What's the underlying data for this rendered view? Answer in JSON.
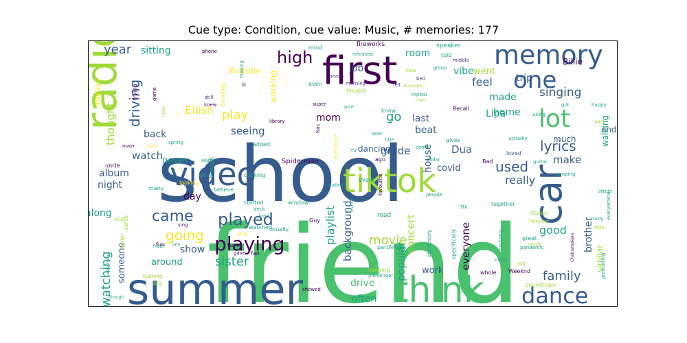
{
  "title": "Cue type: Condition, cue value: Music, # memories: 177",
  "palette": {
    "yellow": "#fde725",
    "lime": "#a0da39",
    "green": "#4ac16d",
    "teal": "#1fa187",
    "cyan": "#277f8e",
    "blue": "#365c8d",
    "indigo": "#46327e",
    "purple": "#440154"
  },
  "words": [
    {
      "text": "friend",
      "color": "green"
    },
    {
      "text": "school",
      "color": "blue"
    },
    {
      "text": "summer",
      "color": "blue"
    },
    {
      "text": "first",
      "color": "purple"
    },
    {
      "text": "radio",
      "color": "lime"
    },
    {
      "text": "think",
      "color": "green"
    },
    {
      "text": "tiktok",
      "color": "lime"
    },
    {
      "text": "video",
      "color": "blue"
    },
    {
      "text": "car",
      "color": "blue"
    },
    {
      "text": "memory",
      "color": "blue"
    },
    {
      "text": "one",
      "color": "blue"
    },
    {
      "text": "lot",
      "color": "green"
    },
    {
      "text": "dance",
      "color": "blue"
    },
    {
      "text": "playing",
      "color": "purple"
    },
    {
      "text": "played",
      "color": "blue"
    },
    {
      "text": "came",
      "color": "blue"
    },
    {
      "text": "going",
      "color": "yellow"
    },
    {
      "text": "high",
      "color": "purple"
    },
    {
      "text": "year",
      "color": "blue"
    },
    {
      "text": "play",
      "color": "yellow"
    },
    {
      "text": "driving",
      "color": "blue"
    },
    {
      "text": "used",
      "color": "blue"
    },
    {
      "text": "lyrics",
      "color": "blue"
    },
    {
      "text": "singing",
      "color": "blue"
    },
    {
      "text": "family",
      "color": "blue"
    },
    {
      "text": "sister",
      "color": "teal"
    },
    {
      "text": "watching",
      "color": "teal"
    },
    {
      "text": "movie",
      "color": "lime"
    },
    {
      "text": "everyone",
      "color": "purple"
    },
    {
      "text": "background",
      "color": "blue"
    },
    {
      "text": "playlist",
      "color": "teal"
    },
    {
      "text": "concert",
      "color": "lime"
    },
    {
      "text": "popular",
      "color": "teal"
    },
    {
      "text": "brother",
      "color": "blue"
    },
    {
      "text": "really",
      "color": "blue"
    },
    {
      "text": "good",
      "color": "teal"
    },
    {
      "text": "room",
      "color": "teal"
    },
    {
      "text": "vibe",
      "color": "teal"
    },
    {
      "text": "feel",
      "color": "blue"
    },
    {
      "text": "made",
      "color": "teal"
    },
    {
      "text": "went",
      "color": "lime"
    },
    {
      "text": "sitting",
      "color": "teal"
    },
    {
      "text": "thought",
      "color": "lime"
    },
    {
      "text": "watch",
      "color": "blue"
    },
    {
      "text": "Youtube",
      "color": "yellow"
    },
    {
      "text": "Eilish",
      "color": "yellow"
    },
    {
      "text": "Billie",
      "color": "purple"
    },
    {
      "text": "seeing",
      "color": "blue"
    },
    {
      "text": "back",
      "color": "blue"
    },
    {
      "text": "album",
      "color": "blue"
    },
    {
      "text": "night",
      "color": "blue"
    },
    {
      "text": "day",
      "color": "purple"
    },
    {
      "text": "along",
      "color": "teal"
    },
    {
      "text": "show",
      "color": "blue"
    },
    {
      "text": "around",
      "color": "teal"
    },
    {
      "text": "drive",
      "color": "green"
    },
    {
      "text": "often",
      "color": "teal"
    },
    {
      "text": "work",
      "color": "blue"
    },
    {
      "text": "mom",
      "color": "purple"
    },
    {
      "text": "go",
      "color": "teal"
    },
    {
      "text": "last",
      "color": "blue"
    },
    {
      "text": "beat",
      "color": "blue"
    },
    {
      "text": "home",
      "color": "teal"
    },
    {
      "text": "trip",
      "color": "blue"
    },
    {
      "text": "Lipa",
      "color": "teal"
    },
    {
      "text": "Dua",
      "color": "blue"
    },
    {
      "text": "covid",
      "color": "blue"
    },
    {
      "text": "make",
      "color": "blue"
    },
    {
      "text": "much",
      "color": "blue"
    },
    {
      "text": "end",
      "color": "blue"
    },
    {
      "text": "walking",
      "color": "teal"
    },
    {
      "text": "similar",
      "color": "lime"
    },
    {
      "text": "house",
      "color": "blue"
    },
    {
      "text": "grade",
      "color": "blue"
    },
    {
      "text": "dancing",
      "color": "blue"
    },
    {
      "text": "job",
      "color": "blue"
    },
    {
      "text": "working",
      "color": "yellow"
    },
    {
      "text": "someone",
      "color": "blue"
    },
    {
      "text": "never",
      "color": "teal"
    },
    {
      "text": "always",
      "color": "yellow"
    },
    {
      "text": "Spiderman",
      "color": "purple"
    },
    {
      "text": "fireworks",
      "color": "purple"
    },
    {
      "text": "speaker",
      "color": "teal"
    },
    {
      "text": "mind",
      "color": "teal"
    },
    {
      "text": "released",
      "color": "teal"
    },
    {
      "text": "phone",
      "color": "purple"
    },
    {
      "text": "told",
      "color": "teal"
    },
    {
      "text": "middle",
      "color": "indigo"
    },
    {
      "text": "group",
      "color": "teal"
    },
    {
      "text": "making",
      "color": "teal"
    },
    {
      "text": "morning",
      "color": "indigo"
    },
    {
      "text": "beach",
      "color": "indigo"
    },
    {
      "text": "class",
      "color": "lime"
    },
    {
      "text": "bed",
      "color": "indigo"
    },
    {
      "text": "felt",
      "color": "indigo"
    },
    {
      "text": "obsessed",
      "color": "lime"
    },
    {
      "text": "repeat",
      "color": "teal"
    },
    {
      "text": "tried",
      "color": "lime"
    },
    {
      "text": "Recall",
      "color": "purple"
    },
    {
      "text": "using",
      "color": "teal"
    },
    {
      "text": "got",
      "color": "teal"
    },
    {
      "text": "happy",
      "color": "teal"
    },
    {
      "text": "want",
      "color": "lime"
    },
    {
      "text": "theatre",
      "color": "lime"
    },
    {
      "text": "even",
      "color": "teal"
    },
    {
      "text": "lil",
      "color": "purple"
    },
    {
      "text": "trending",
      "color": "yellow"
    },
    {
      "text": "still",
      "color": "indigo"
    },
    {
      "text": "knew",
      "color": "purple"
    },
    {
      "text": "library",
      "color": "purple"
    },
    {
      "text": "super",
      "color": "purple"
    },
    {
      "text": "sure",
      "color": "teal"
    },
    {
      "text": "know",
      "color": "teal"
    },
    {
      "text": "seat",
      "color": "teal"
    },
    {
      "text": "title",
      "color": "teal"
    },
    {
      "text": "actually",
      "color": "teal"
    },
    {
      "text": "gives",
      "color": "teal"
    },
    {
      "text": "come",
      "color": "teal"
    },
    {
      "text": "dollar",
      "color": "teal"
    },
    {
      "text": "loved",
      "color": "blue"
    },
    {
      "text": "Bad",
      "color": "purple"
    },
    {
      "text": "guitar",
      "color": "teal"
    },
    {
      "text": "jumping",
      "color": "teal"
    },
    {
      "text": "together",
      "color": "teal"
    },
    {
      "text": "street",
      "color": "teal"
    },
    {
      "text": "trying",
      "color": "purple"
    },
    {
      "text": "game",
      "color": "purple"
    },
    {
      "text": "older",
      "color": "lime"
    },
    {
      "text": "reason",
      "color": "cyan"
    },
    {
      "text": "point",
      "color": "cyan"
    },
    {
      "text": "spring",
      "color": "teal"
    },
    {
      "text": "bowl",
      "color": "yellow"
    },
    {
      "text": "main",
      "color": "purple"
    },
    {
      "text": "Harry",
      "color": "teal"
    },
    {
      "text": "added",
      "color": "teal"
    },
    {
      "text": "brought",
      "color": "teal"
    },
    {
      "text": "cooking",
      "color": "teal"
    },
    {
      "text": "old",
      "color": "teal"
    },
    {
      "text": "uncle",
      "color": "purple"
    },
    {
      "text": "looking",
      "color": "yellow"
    },
    {
      "text": "many",
      "color": "teal"
    },
    {
      "text": "believe",
      "color": "teal"
    },
    {
      "text": "started",
      "color": "teal"
    },
    {
      "text": "window",
      "color": "teal"
    },
    {
      "text": "called",
      "color": "teal"
    },
    {
      "text": "event",
      "color": "teal"
    },
    {
      "text": "favourite",
      "color": "purple"
    },
    {
      "text": "ago",
      "color": "purple"
    },
    {
      "text": "TV",
      "color": "teal"
    },
    {
      "text": "Everytime",
      "color": "yellow"
    },
    {
      "text": "Nas",
      "color": "purple"
    },
    {
      "text": "every",
      "color": "teal"
    },
    {
      "text": "people",
      "color": "teal"
    },
    {
      "text": "road",
      "color": "teal"
    },
    {
      "text": "deck",
      "color": "teal"
    },
    {
      "text": "kind",
      "color": "teal"
    },
    {
      "text": "watched",
      "color": "teal"
    },
    {
      "text": "sang",
      "color": "yellow"
    },
    {
      "text": "usually",
      "color": "teal"
    },
    {
      "text": "Guy",
      "color": "purple"
    },
    {
      "text": "tune",
      "color": "purple"
    },
    {
      "text": "gave",
      "color": "purple"
    },
    {
      "text": "fan",
      "color": "purple"
    },
    {
      "text": "hear",
      "color": "teal"
    },
    {
      "text": "sing",
      "color": "purple"
    },
    {
      "text": "fun",
      "color": "purple"
    },
    {
      "text": "late",
      "color": "teal"
    },
    {
      "text": "visit",
      "color": "lime"
    },
    {
      "text": "verse",
      "color": "lime"
    },
    {
      "text": "spider",
      "color": "lime"
    },
    {
      "text": "everything",
      "color": "teal"
    },
    {
      "text": "Evening",
      "color": "lime"
    },
    {
      "text": "big",
      "color": "lime"
    },
    {
      "text": "showed",
      "color": "purple"
    },
    {
      "text": "hanging",
      "color": "lime"
    },
    {
      "text": "passenger",
      "color": "teal"
    },
    {
      "text": "partAriana",
      "color": "teal"
    },
    {
      "text": "elementary",
      "color": "teal"
    },
    {
      "text": "specifically",
      "color": "teal"
    },
    {
      "text": "7th",
      "color": "teal"
    },
    {
      "text": "probably",
      "color": "teal"
    },
    {
      "text": "great",
      "color": "teal"
    },
    {
      "text": "enjoy",
      "color": "teal"
    },
    {
      "text": "whole",
      "color": "purple"
    },
    {
      "text": "Weeknd",
      "color": "purple"
    },
    {
      "text": "rap",
      "color": "lime"
    },
    {
      "text": "crush",
      "color": "lime"
    },
    {
      "text": "soundtrack",
      "color": "lime"
    },
    {
      "text": "Styles",
      "color": "lime"
    },
    {
      "text": "Chainsmokers",
      "color": "purple"
    },
    {
      "text": "Thinking",
      "color": "lime"
    },
    {
      "text": "pandemic",
      "color": "teal"
    },
    {
      "text": "little",
      "color": "lime"
    },
    {
      "text": "everywhere",
      "color": "teal"
    },
    {
      "text": "study",
      "color": "teal"
    },
    {
      "text": "graduating",
      "color": "teal"
    },
    {
      "text": "though",
      "color": "teal"
    }
  ]
}
